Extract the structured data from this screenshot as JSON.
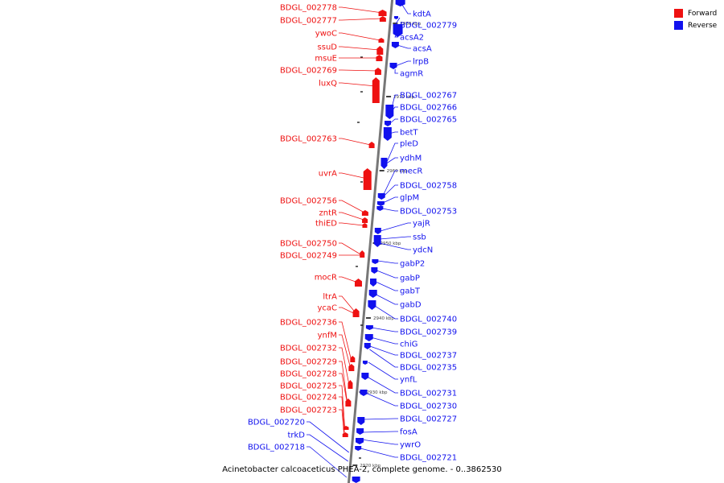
{
  "title": "Acinetobacter calcoaceticus PHEA-2, complete genome. - 0..3862530",
  "colors": {
    "forward": "#ee1111",
    "reverse": "#1111ee",
    "axis": "#777777",
    "tick": "#000000"
  },
  "legend": [
    {
      "label": "Forward",
      "color": "#ee1111"
    },
    {
      "label": "Reverse",
      "color": "#1111ee"
    }
  ],
  "axis_ticks": [
    "2980 kbp",
    "2970 kbp",
    "2960 kbp",
    "2950 kbp",
    "2940 kbp",
    "2930 kbp",
    "2920 kbp"
  ],
  "forward_genes": [
    "BDGL_002778",
    "BDGL_002777",
    "ywoC",
    "ssuD",
    "msuE",
    "BDGL_002769",
    "luxQ",
    "BDGL_002763",
    "uvrA",
    "BDGL_002756",
    "zntR",
    "thiED",
    "BDGL_002750",
    "BDGL_002749",
    "mocR",
    "ltrA",
    "ycaC",
    "BDGL_002736",
    "ynfM",
    "BDGL_002732",
    "BDGL_002729",
    "BDGL_002728",
    "BDGL_002725",
    "BDGL_002724",
    "BDGL_002723"
  ],
  "reverse_genes": [
    "kdtA",
    "BDGL_002779",
    "acsA2",
    "acsA",
    "lrpB",
    "agmR",
    "BDGL_002767",
    "BDGL_002766",
    "BDGL_002765",
    "betT",
    "pleD",
    "ydhM",
    "mecR",
    "BDGL_002758",
    "glpM",
    "BDGL_002753",
    "yajR",
    "ssb",
    "ydcN",
    "gabP2",
    "gabP",
    "gabT",
    "gabD",
    "BDGL_002740",
    "BDGL_002739",
    "chiG",
    "BDGL_002737",
    "BDGL_002735",
    "ynfL",
    "BDGL_002731",
    "BDGL_002730",
    "BDGL_002727",
    "fosA",
    "ywrO",
    "BDGL_002721",
    "BDGL_002720",
    "trkD",
    "BDGL_002718"
  ]
}
